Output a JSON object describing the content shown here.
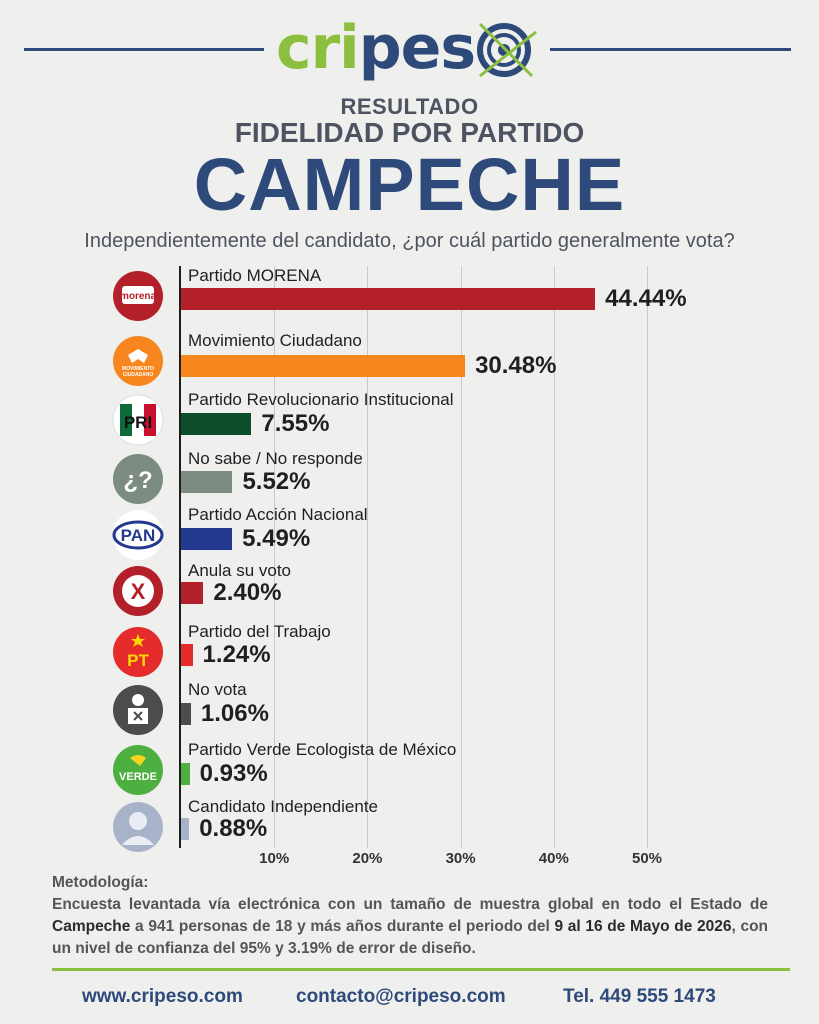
{
  "brand": {
    "name_part1": "cripe",
    "name_part2": "s",
    "name_part3": "o",
    "accent_green": "#8cbf3f",
    "accent_blue": "#2e4a7a"
  },
  "header": {
    "result": "RESULTADO",
    "subtitle": "FIDELIDAD POR PARTIDO",
    "state": "CAMPECHE",
    "question": "Independientemente del candidato, ¿por cuál partido generalmente vota?"
  },
  "chart_data": {
    "type": "bar",
    "orientation": "horizontal",
    "categories": [
      "Partido MORENA",
      "Movimiento Ciudadano",
      "Partido Revolucionario Institucional",
      "No sabe / No responde",
      "Partido Acción Nacional",
      "Anula su voto",
      "Partido del Trabajo",
      "No vota",
      "Partido Verde Ecologista de México",
      "Candidato Independiente"
    ],
    "values": [
      44.44,
      30.48,
      7.55,
      5.52,
      5.49,
      2.4,
      1.24,
      1.06,
      0.93,
      0.88
    ],
    "value_labels": [
      "44.44%",
      "30.48%",
      "7.55%",
      "5.52%",
      "5.49%",
      "2.40%",
      "1.24%",
      "1.06%",
      "0.93%",
      "0.88%"
    ],
    "colors": [
      "#b3202a",
      "#f7861e",
      "#0d4d2b",
      "#7c8c80",
      "#23388f",
      "#b3202a",
      "#e52b2b",
      "#4c4c4c",
      "#4caf3f",
      "#a8b3c9"
    ],
    "icons": [
      "morena-logo-icon",
      "movimiento-ciudadano-logo-icon",
      "pri-logo-icon",
      "question-marks-icon",
      "pan-logo-icon",
      "x-mark-icon",
      "pt-logo-icon",
      "no-vote-icon",
      "verde-logo-icon",
      "person-silhouette-icon"
    ],
    "icon_texts": [
      "morena",
      "MOVIMIENTO CIUDADANO",
      "PRI",
      "¿?",
      "PAN",
      "X",
      "PT",
      "",
      "VERDE",
      ""
    ],
    "xlim": [
      0,
      50
    ],
    "xticks": [
      "10%",
      "20%",
      "30%",
      "40%",
      "50%"
    ],
    "grid": true
  },
  "methodology": {
    "title": "Metodología:",
    "text_1": "Encuesta levantada vía electrónica con un tamaño de muestra global en todo el Estado de ",
    "state": "Campeche",
    "text_2": " a 941 personas de 18 y más años durante el periodo del ",
    "dates": "9 al 16 de Mayo de 2026",
    "text_3": ", con un nivel de confianza del 95% y 3.19% de error de diseño."
  },
  "footer": {
    "website": "www.cripeso.com",
    "email": "contacto@cripeso.com",
    "phone": "Tel. 449 555 1473"
  }
}
